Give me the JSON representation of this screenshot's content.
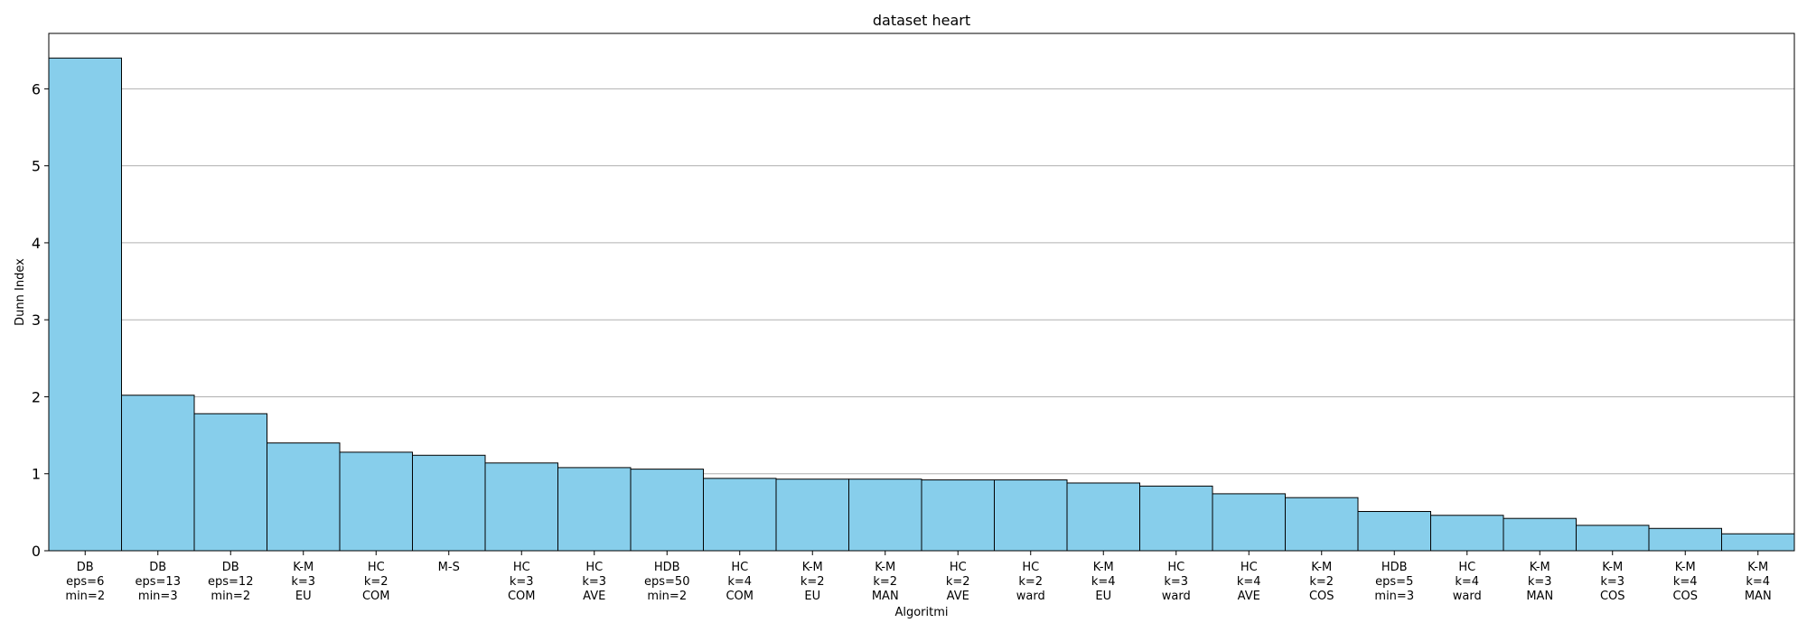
{
  "chart_data": {
    "type": "bar",
    "title": "dataset heart",
    "xlabel": "Algoritmi",
    "ylabel": "Dunn Index",
    "ylim": [
      0,
      6.72
    ],
    "yticks": [
      0,
      1,
      2,
      3,
      4,
      5,
      6
    ],
    "grid": "y",
    "bar_color": "#87CEEB",
    "edge_color": "#000000",
    "categories": [
      "DB\neps=6\nmin=2",
      "DB\neps=13\nmin=3",
      "DB\neps=12\nmin=2",
      "K-M\nk=3\nEU",
      "HC\nk=2\nCOM",
      "M-S",
      "HC\nk=3\nCOM",
      "HC\nk=3\nAVE",
      "HDB\neps=50\nmin=2",
      "HC\nk=4\nCOM",
      "K-M\nk=2\nEU",
      "K-M\nk=2\nMAN",
      "HC\nk=2\nAVE",
      "HC\nk=2\nward",
      "K-M\nk=4\nEU",
      "HC\nk=3\nward",
      "HC\nk=4\nAVE",
      "K-M\nk=2\nCOS",
      "HDB\neps=5\nmin=3",
      "HC\nk=4\nward",
      "K-M\nk=3\nMAN",
      "K-M\nk=3\nCOS",
      "K-M\nk=4\nCOS",
      "K-M\nk=4\nMAN"
    ],
    "values": [
      6.4,
      2.02,
      1.78,
      1.4,
      1.28,
      1.24,
      1.14,
      1.08,
      1.06,
      0.94,
      0.93,
      0.93,
      0.92,
      0.92,
      0.88,
      0.84,
      0.74,
      0.69,
      0.51,
      0.46,
      0.42,
      0.33,
      0.29,
      0.22
    ]
  }
}
